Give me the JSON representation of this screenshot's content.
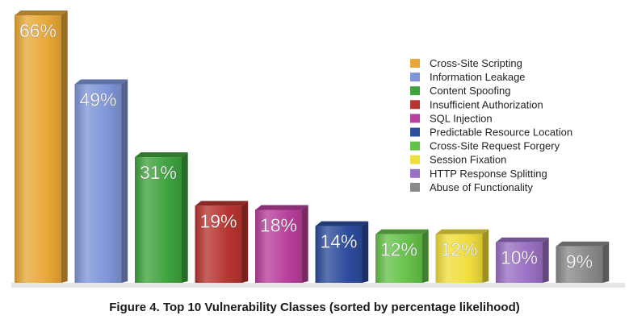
{
  "chart_data": {
    "type": "bar",
    "categories": [
      "Cross-Site Scripting",
      "Information Leakage",
      "Content Spoofing",
      "Insufficient Authorization",
      "SQL Injection",
      "Predictable Resource Location",
      "Cross-Site Request Forgery",
      "Session Fixation",
      "HTTP Response Splitting",
      "Abuse of Functionality"
    ],
    "values": [
      66,
      49,
      31,
      19,
      18,
      14,
      12,
      12,
      10,
      9
    ],
    "value_labels": [
      "66%",
      "49%",
      "31%",
      "19%",
      "18%",
      "14%",
      "12%",
      "12%",
      "10%",
      "9%"
    ],
    "colors": [
      "#e8a838",
      "#7e96d8",
      "#3fa33f",
      "#b73530",
      "#b8409c",
      "#2c4c9c",
      "#66c14a",
      "#f0de3c",
      "#9a70c4",
      "#8a8a8a"
    ],
    "ylim": [
      0,
      66
    ],
    "grid": false,
    "legend": "top-right",
    "title": "Figure 4. Top 10 Vulnerability Classes (sorted by percentage likelihood)"
  }
}
